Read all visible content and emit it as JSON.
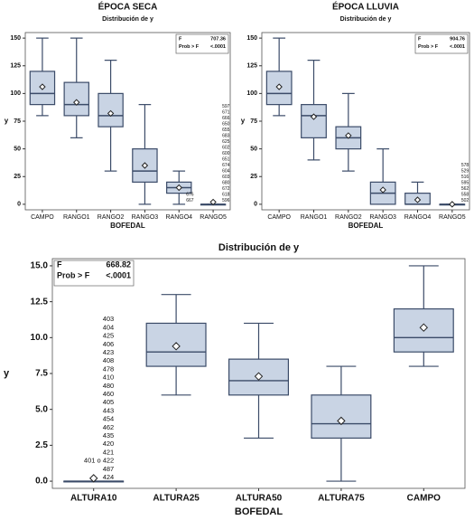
{
  "chart_data": [
    {
      "type": "box",
      "title": "ÉPOCA SECA",
      "subtitle": "Distribución de y",
      "x_label": "BOFEDAL",
      "y_label": "y",
      "categories": [
        "CAMPO",
        "RANGO1",
        "RANGO2",
        "RANGO3",
        "RANGO4",
        "RANGO5"
      ],
      "boxes": [
        {
          "min": 80,
          "q1": 90,
          "median": 100,
          "q3": 120,
          "max": 150,
          "mean": 106
        },
        {
          "min": 60,
          "q1": 80,
          "median": 90,
          "q3": 110,
          "max": 150,
          "mean": 92
        },
        {
          "min": 30,
          "q1": 70,
          "median": 80,
          "q3": 100,
          "max": 130,
          "mean": 82
        },
        {
          "min": 0,
          "q1": 20,
          "median": 30,
          "q3": 50,
          "max": 90,
          "mean": 35
        },
        {
          "min": 0,
          "q1": 10,
          "median": 15,
          "q3": 20,
          "max": 30,
          "mean": 15
        },
        {
          "min": 0,
          "q1": 0,
          "median": 0,
          "q3": 0,
          "max": 0,
          "mean": 2
        }
      ],
      "outlier_labels": [
        null,
        null,
        null,
        null,
        [
          "667",
          "676"
        ],
        [
          "596",
          "618",
          "672",
          "680",
          "603",
          "604",
          "674",
          "651",
          "600",
          "602",
          "625",
          "683",
          "655",
          "650",
          "666",
          "671",
          "597"
        ]
      ],
      "ylim": [
        -5,
        155
      ],
      "yticks": [
        0,
        25,
        50,
        75,
        100,
        125,
        150
      ],
      "stats": [
        {
          "label": "F",
          "value": 707.36
        },
        {
          "label": "Prob > F",
          "value": "<.0001"
        }
      ],
      "stats_corner": "upper right",
      "color": "#c9d4e4",
      "edge_color": "#3b4b68"
    },
    {
      "type": "box",
      "title": "ÉPOCA LLUVIA",
      "subtitle": "Distribución de y",
      "x_label": "BOFEDAL",
      "y_label": "y",
      "categories": [
        "CAMPO",
        "RANGO1",
        "RANGO2",
        "RANGO3",
        "RANGO4",
        "RANGO5"
      ],
      "boxes": [
        {
          "min": 80,
          "q1": 90,
          "median": 100,
          "q3": 120,
          "max": 150,
          "mean": 106
        },
        {
          "min": 40,
          "q1": 60,
          "median": 80,
          "q3": 90,
          "max": 130,
          "mean": 79
        },
        {
          "min": 30,
          "q1": 50,
          "median": 60,
          "q3": 70,
          "max": 100,
          "mean": 62
        },
        {
          "min": 0,
          "q1": 0,
          "median": 10,
          "q3": 20,
          "max": 50,
          "mean": 13
        },
        {
          "min": 0,
          "q1": 0,
          "median": 0,
          "q3": 10,
          "max": 20,
          "mean": 4
        },
        {
          "min": 0,
          "q1": 0,
          "median": 0,
          "q3": 0,
          "max": 0,
          "mean": 0
        }
      ],
      "outlier_labels": [
        null,
        null,
        null,
        null,
        null,
        [
          "502",
          "558",
          "562",
          "595",
          "516",
          "529",
          "578"
        ]
      ],
      "ylim": [
        -5,
        155
      ],
      "yticks": [
        0,
        25,
        50,
        75,
        100,
        125,
        150
      ],
      "stats": [
        {
          "label": "F",
          "value": 904.76
        },
        {
          "label": "Prob > F",
          "value": "<.0001"
        }
      ],
      "stats_corner": "upper right",
      "color": "#c9d4e4",
      "edge_color": "#3b4b68"
    },
    {
      "type": "box",
      "title": "Distribución de y",
      "x_label": "BOFEDAL",
      "y_label": "y",
      "categories": [
        "ALTURA10",
        "ALTURA25",
        "ALTURA50",
        "ALTURA75",
        "CAMPO"
      ],
      "boxes": [
        {
          "min": 0,
          "q1": 0,
          "median": 0,
          "q3": 0,
          "max": 0,
          "mean": 0.2
        },
        {
          "min": 6,
          "q1": 8,
          "median": 9,
          "q3": 11,
          "max": 13,
          "mean": 9.4
        },
        {
          "min": 3,
          "q1": 6,
          "median": 7,
          "q3": 8.5,
          "max": 11,
          "mean": 7.3
        },
        {
          "min": 0,
          "q1": 3,
          "median": 4,
          "q3": 6,
          "max": 8,
          "mean": 4.2
        },
        {
          "min": 8,
          "q1": 9,
          "median": 10,
          "q3": 12,
          "max": 15,
          "mean": 10.7
        }
      ],
      "outlier_labels": [
        [
          "424",
          "487",
          "422",
          "421",
          "420",
          "435",
          "462",
          "454",
          "443",
          "405",
          "460",
          "480",
          "410",
          "478",
          "408",
          "423",
          "406",
          "425",
          "404",
          "403"
        ],
        null,
        null,
        null,
        null
      ],
      "extra_label": "401 o",
      "ylim": [
        -0.5,
        15.5
      ],
      "yticks": [
        {
          "value": 0,
          "label": "0.0"
        },
        2.5,
        {
          "value": 5,
          "label": "5.0"
        },
        7.5,
        {
          "value": 10,
          "label": "10.0"
        },
        12.5,
        {
          "value": 15,
          "label": "15.0"
        }
      ],
      "stats": [
        {
          "label": "F",
          "value": 668.82
        },
        {
          "label": "Prob > F",
          "value": "<.0001"
        }
      ],
      "stats_corner": "upper left",
      "color": "#c9d4e4",
      "edge_color": "#3b4b68"
    }
  ]
}
